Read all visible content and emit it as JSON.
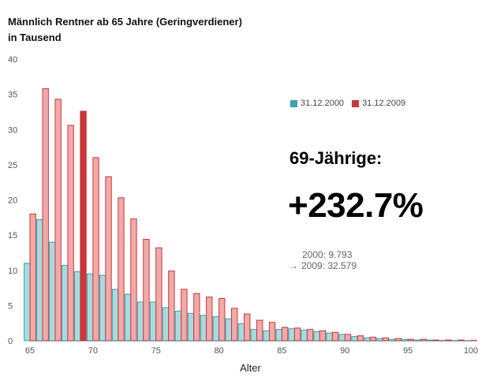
{
  "header": {
    "title_line1": "Männlich Rentner ab 65 Jahre (Geringverdiener)",
    "title_line2": "in Tausend"
  },
  "legend": {
    "series1": "31.12.2000",
    "series2": "31.12.2009"
  },
  "annotation": {
    "heading": "69-Jährige:",
    "percent": "+232.7%",
    "line1": "2000: 9.793",
    "arrow": "→",
    "line2": "2009: 32.579"
  },
  "colors": {
    "s2000_fill": "#a8dbe0",
    "s2000_stroke": "#3ba3ab",
    "s2009_fill": "#f0aaaa",
    "s2009_stroke": "#c9373b",
    "s2009_highlight_fill": "#c9373b",
    "grid": "#e5e5e5"
  },
  "chart_data": {
    "type": "bar",
    "title": "Männlich Rentner ab 65 Jahre (Geringverdiener)",
    "subtitle": "in Tausend",
    "xlabel": "Alter",
    "ylabel": "",
    "x": [
      65,
      66,
      67,
      68,
      69,
      70,
      71,
      72,
      73,
      74,
      75,
      76,
      77,
      78,
      79,
      80,
      81,
      82,
      83,
      84,
      85,
      86,
      87,
      88,
      89,
      90,
      91,
      92,
      93,
      94,
      95,
      96,
      97,
      98,
      99,
      100
    ],
    "series": [
      {
        "name": "31.12.2000",
        "values": [
          11.0,
          17.2,
          14.0,
          10.7,
          9.8,
          9.5,
          9.3,
          7.3,
          6.6,
          5.5,
          5.5,
          4.7,
          4.2,
          3.9,
          3.6,
          3.4,
          3.1,
          2.4,
          1.6,
          1.4,
          1.6,
          1.7,
          1.5,
          1.3,
          1.1,
          0.9,
          0.6,
          0.4,
          0.3,
          0.2,
          0.2,
          0.1,
          0.1,
          0.05,
          0.03,
          0.02
        ]
      },
      {
        "name": "31.12.2009",
        "values": [
          18.0,
          35.8,
          34.3,
          30.6,
          32.6,
          26.0,
          23.3,
          20.3,
          17.3,
          14.4,
          13.2,
          9.9,
          7.3,
          6.7,
          6.2,
          6.0,
          4.6,
          3.8,
          2.9,
          2.6,
          1.9,
          1.8,
          1.6,
          1.4,
          1.2,
          0.9,
          0.7,
          0.5,
          0.4,
          0.3,
          0.2,
          0.2,
          0.1,
          0.1,
          0.1,
          0.05
        ]
      }
    ],
    "highlight": {
      "series": "31.12.2009",
      "x": 69
    },
    "xlim": [
      65,
      100
    ],
    "ylim": [
      0,
      40
    ],
    "yticks": [
      0,
      5,
      10,
      15,
      20,
      25,
      30,
      35,
      40
    ],
    "xticks": [
      65,
      70,
      75,
      80,
      85,
      90,
      95,
      100
    ],
    "grid": false,
    "legend": "top-right"
  }
}
